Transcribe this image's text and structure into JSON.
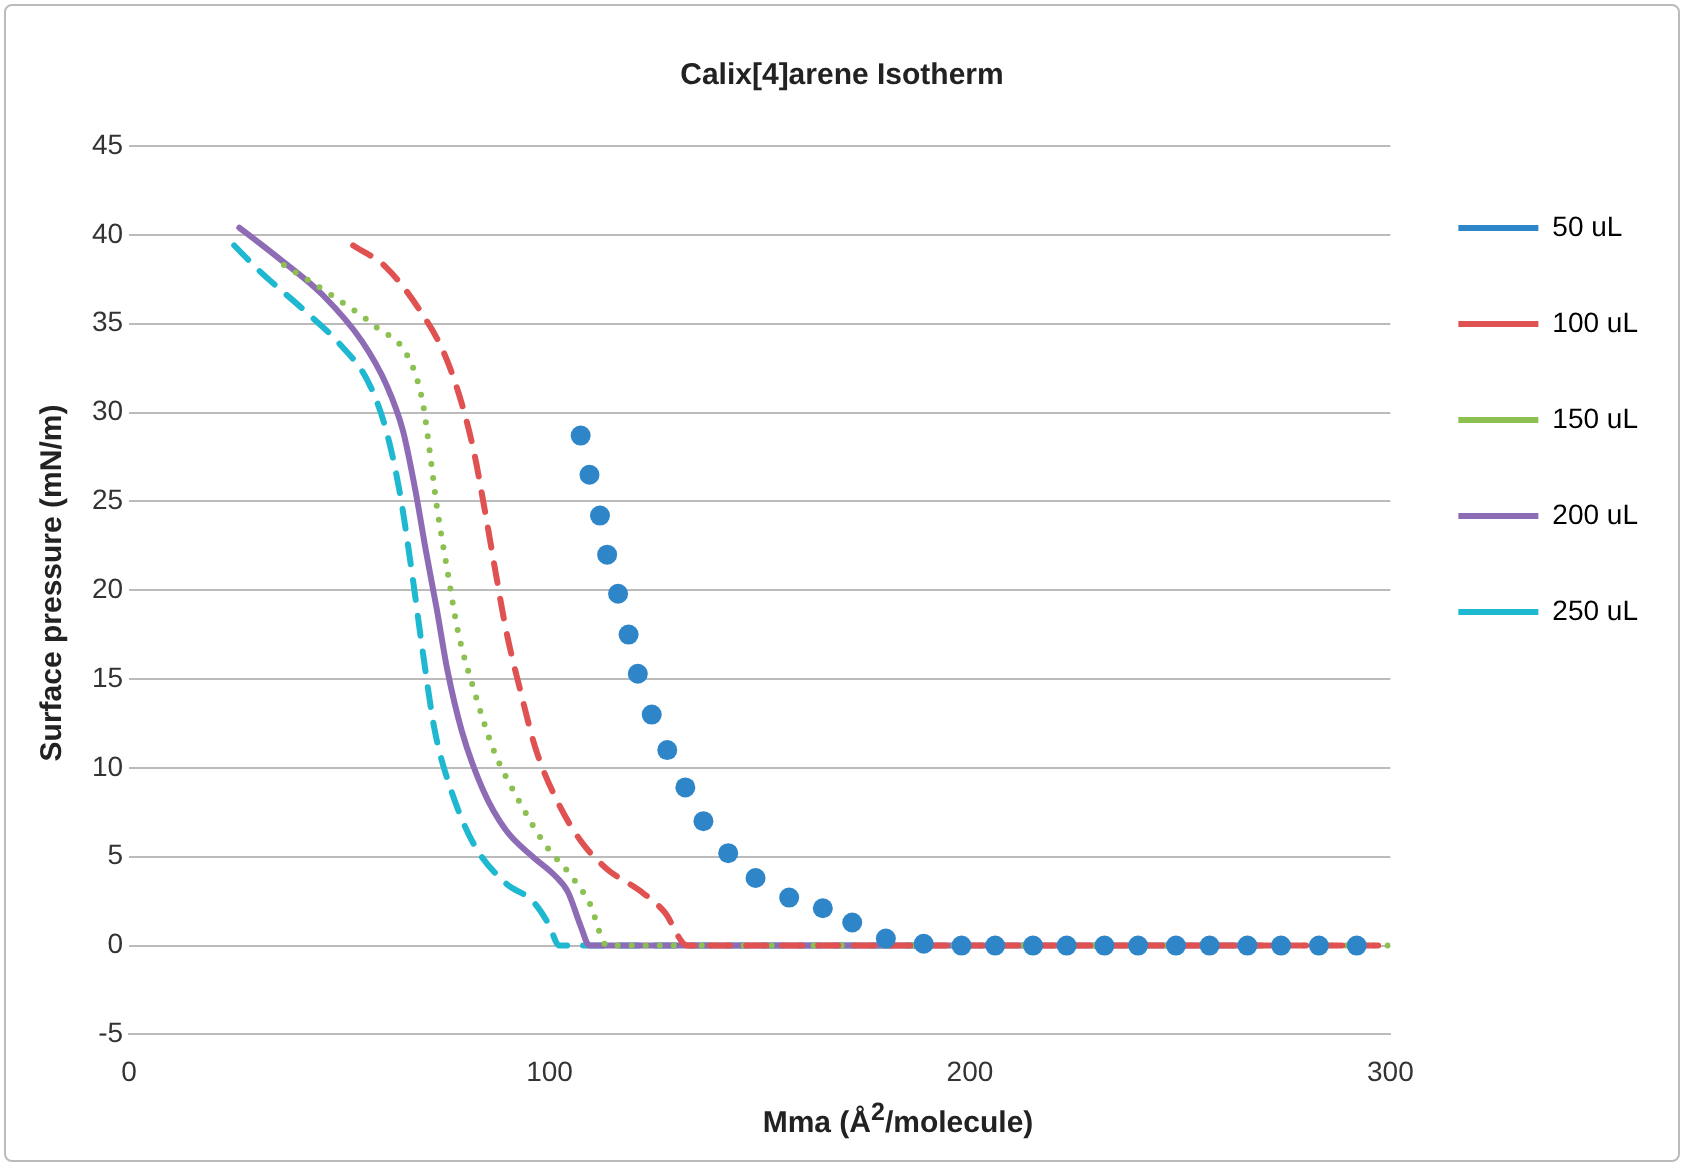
{
  "chart_data": {
    "type": "line",
    "title": "Calix[4]arene Isotherm",
    "xlabel": "Mma (Å$^{2}$/molecule)",
    "ylabel": "Surface pressure (mN/m)",
    "xlim": [
      0,
      300
    ],
    "xticks": [
      0,
      100,
      200,
      300
    ],
    "ylim": [
      -5,
      45
    ],
    "yticks": [
      -5,
      0,
      5,
      10,
      15,
      20,
      25,
      30,
      35,
      40,
      45
    ],
    "grid": "y",
    "legend": "right",
    "series": [
      {
        "name": "50 uL",
        "type": "scatter",
        "marker": "circle",
        "color": "#2e86c9",
        "x": [
          107.4,
          109.5,
          112,
          113.7,
          116.3,
          118.8,
          121,
          124.3,
          128,
          132.3,
          136.6,
          142.5,
          149,
          157,
          165,
          172,
          180,
          189,
          198,
          206,
          215,
          223,
          232,
          240,
          249,
          257,
          266,
          274,
          283,
          292
        ],
        "values": [
          28.7,
          26.5,
          24.2,
          22,
          19.8,
          17.5,
          15.3,
          13,
          11,
          8.9,
          7,
          5.2,
          3.8,
          2.7,
          2.1,
          1.3,
          0.4,
          0.1,
          0,
          0,
          0,
          0,
          0,
          0,
          0,
          0,
          0,
          0,
          0,
          0
        ]
      },
      {
        "name": "100 uL",
        "line_style": "dashed",
        "color": "#e05252",
        "x": [
          53.3,
          61,
          69.3,
          74.8,
          79,
          82,
          84.6,
          87.1,
          89.7,
          93,
          96.8,
          101.9,
          107.4,
          113.7,
          121.4,
          127.3,
          132.8,
          200,
          298
        ],
        "values": [
          39.4,
          38.2,
          35.7,
          33.4,
          30.6,
          27.8,
          24.5,
          21.1,
          17.7,
          14.4,
          11,
          8.1,
          5.9,
          4.3,
          3.1,
          1.9,
          0,
          0,
          0
        ]
      },
      {
        "name": "150 uL",
        "line_style": "dotted",
        "color": "#8cc152",
        "x": [
          36.8,
          48.2,
          58.8,
          66.4,
          69.8,
          71.5,
          73.2,
          75.7,
          78.2,
          82,
          86.7,
          92.6,
          98.9,
          104.9,
          109.5,
          113.7,
          200,
          300
        ],
        "values": [
          38.3,
          36.6,
          34.8,
          33.1,
          30.6,
          27.8,
          24.7,
          21.1,
          17.7,
          14.4,
          11,
          8.2,
          5.7,
          4,
          2.4,
          0,
          0,
          0
        ]
      },
      {
        "name": "200 uL",
        "line_style": "solid",
        "color": "#8e6bb5",
        "x": [
          26.2,
          35.5,
          46.1,
          55.4,
          61.3,
          65.1,
          68.1,
          70.6,
          73.2,
          75.7,
          79.1,
          84.1,
          89.6,
          96,
          101,
          104.4,
          107.4,
          109.5,
          200,
          269
        ],
        "values": [
          40.4,
          38.7,
          36.6,
          34,
          31.5,
          29,
          25.6,
          22.2,
          18.9,
          15.5,
          12.1,
          8.8,
          6.5,
          5,
          4,
          3,
          1.1,
          0,
          0,
          0
        ]
      },
      {
        "name": "250 uL",
        "line_style": "dashed",
        "color": "#1fb8d1",
        "x": [
          25,
          31.3,
          41.9,
          50.3,
          56.7,
          60.9,
          64.3,
          67.2,
          69.8,
          72.7,
          76.5,
          82,
          89.6,
          96,
          99.8,
          102.3,
          190
        ],
        "values": [
          39.4,
          37.9,
          35.7,
          33.8,
          31.8,
          29.2,
          25.6,
          21.1,
          16.6,
          12.1,
          8.8,
          5.7,
          3.5,
          2.5,
          1.2,
          0,
          0
        ]
      }
    ]
  }
}
